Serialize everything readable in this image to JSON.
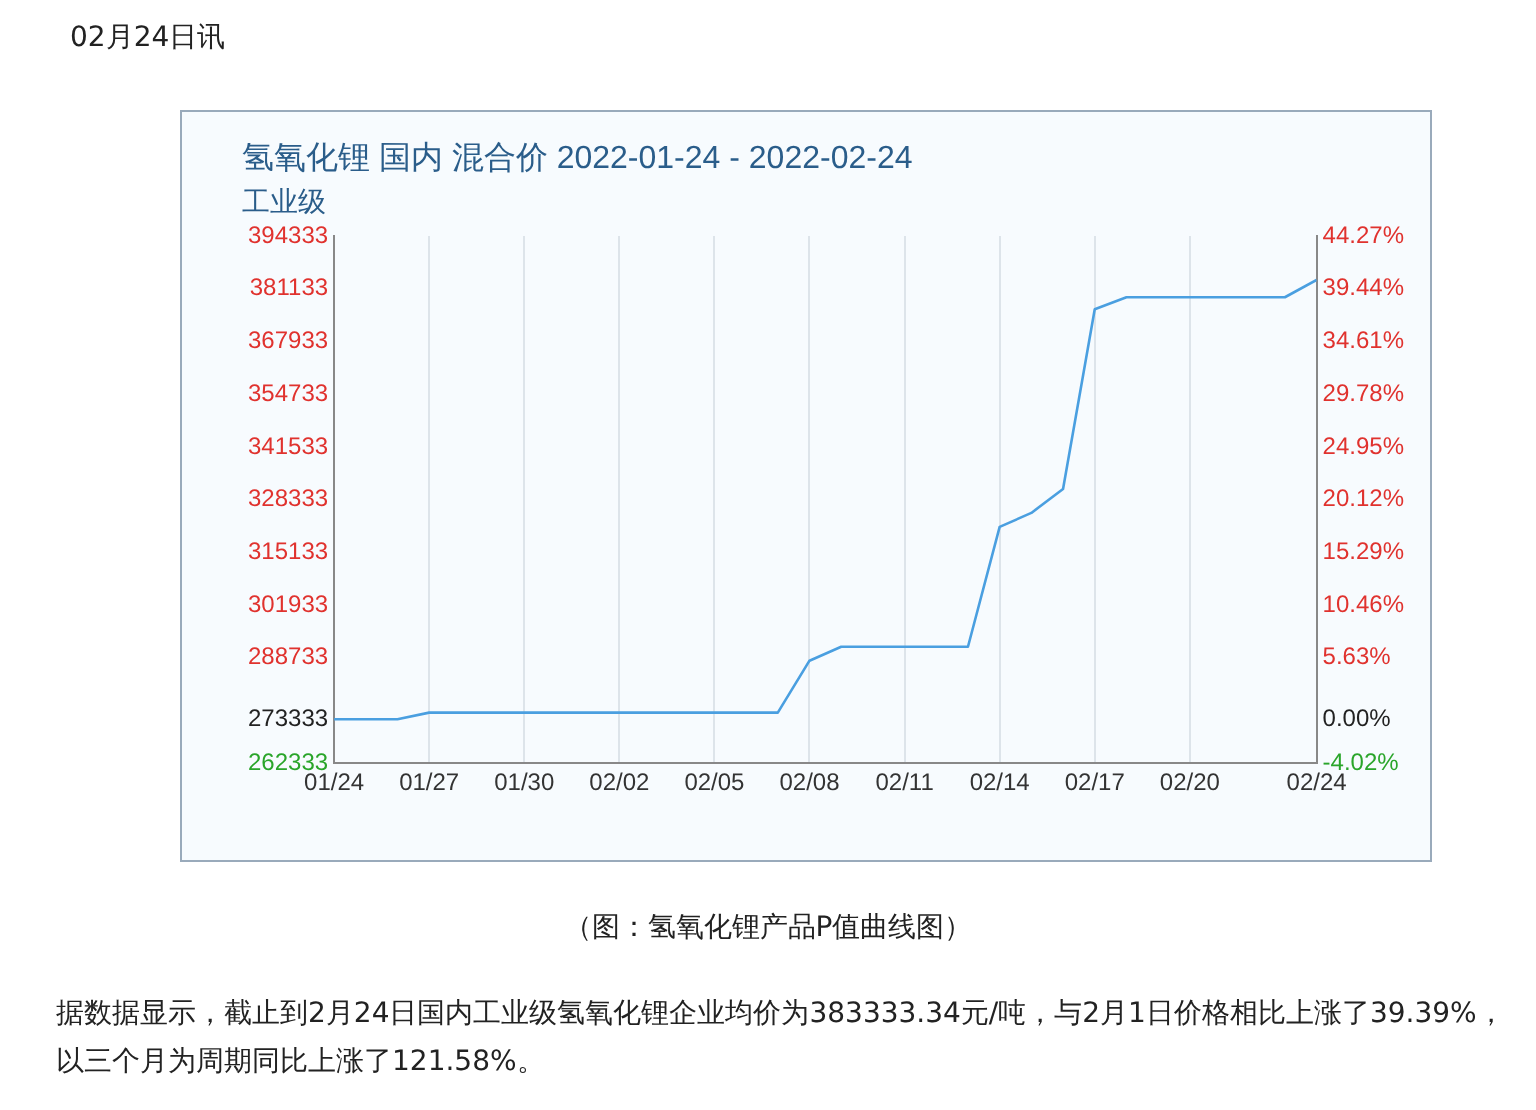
{
  "chart_data": {
    "type": "line",
    "title": "氢氧化锂 国内 混合价 2022-01-24 - 2022-02-24",
    "subtitle": "工业级",
    "x": [
      "--01-24",
      "--01-26",
      "--01-27",
      "--02-07",
      "--02-08",
      "--02-09",
      "--02-13",
      "--02-14",
      "--02-15",
      "--02-16",
      "--02-17",
      "--02-18",
      "--02-23",
      "--02-24"
    ],
    "series": [
      {
        "color": "#4a9fe0",
        "values": [
          273333,
          273333,
          275000,
          275000,
          288000,
          291500,
          291500,
          321500,
          325000,
          331000,
          376000,
          379000,
          379000,
          383333
        ]
      }
    ],
    "xlim": [
      "--01-24",
      "--02-24"
    ],
    "xticks": [
      {
        "value": "--01-24",
        "label": "01/24"
      },
      {
        "value": "--01-27",
        "label": "01/27"
      },
      {
        "value": "--01-30",
        "label": "01/30"
      },
      {
        "value": "--02-02",
        "label": "02/02"
      },
      {
        "value": "--02-05",
        "label": "02/05"
      },
      {
        "value": "--02-08",
        "label": "02/08"
      },
      {
        "value": "--02-11",
        "label": "02/11"
      },
      {
        "value": "--02-14",
        "label": "02/14"
      },
      {
        "value": "--02-17",
        "label": "02/17"
      },
      {
        "value": "--02-20",
        "label": "02/20"
      },
      {
        "value": "--02-24",
        "label": "02/24"
      }
    ],
    "ylim": [
      262333,
      394333
    ],
    "yticks": [
      262333,
      273333,
      288733,
      301933,
      315133,
      328333,
      341533,
      354733,
      367933,
      381133,
      394333
    ],
    "y2lim": [
      -4.02,
      44.27
    ],
    "y2ticks": [
      {
        "value": -4.02,
        "label": "-4.02%"
      },
      {
        "value": 0,
        "label": "0.00%"
      },
      {
        "value": 5.63,
        "label": "5.63%"
      },
      {
        "value": 10.46,
        "label": "10.46%"
      },
      {
        "value": 15.29,
        "label": "15.29%"
      },
      {
        "value": 20.12,
        "label": "20.12%"
      },
      {
        "value": 24.95,
        "label": "24.95%"
      },
      {
        "value": 29.78,
        "label": "29.78%"
      },
      {
        "value": 34.61,
        "label": "34.61%"
      },
      {
        "value": 39.44,
        "label": "39.44%"
      },
      {
        "value": 44.27,
        "label": "44.27%"
      }
    ],
    "grid": "x",
    "legend": false,
    "marker": "none",
    "line_style": "solid",
    "annotations": [
      "02月24日讯",
      "（图：氢氧化锂产品P值曲线图）",
      "据数据显示，截止到2月24日国内工业级氢氧化锂企业均价为383333.34元/吨，与2月1日价格相比上涨了39.39%，以三个月为周期同比上涨了121.58%。"
    ]
  }
}
